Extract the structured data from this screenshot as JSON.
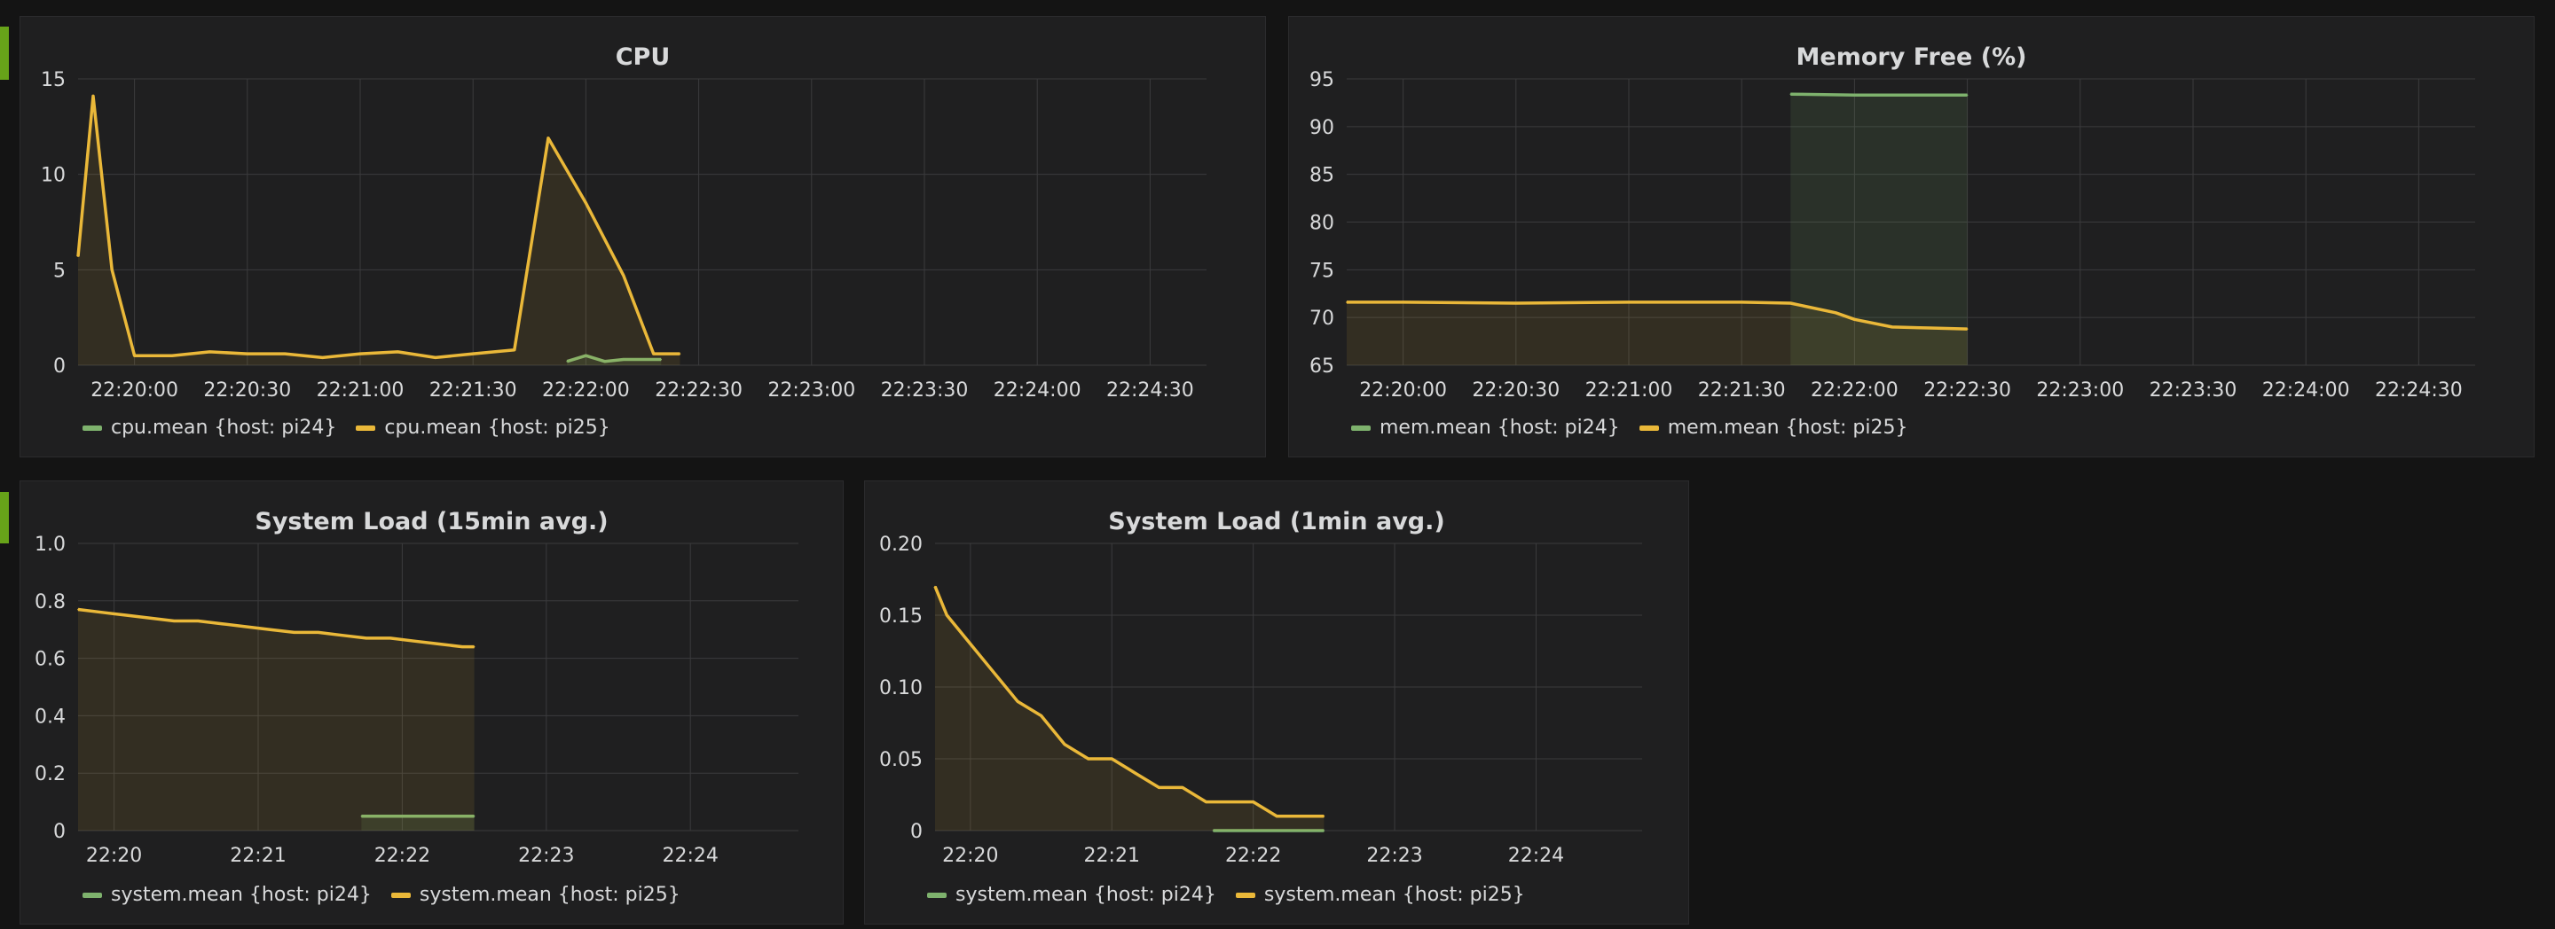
{
  "panels": [
    {
      "id": "cpu",
      "title": "CPU",
      "legend": [
        "cpu.mean {host: pi24}",
        "cpu.mean {host: pi25}"
      ]
    },
    {
      "id": "mem",
      "title": "Memory Free (%)",
      "legend": [
        "mem.mean {host: pi24}",
        "mem.mean {host: pi25}"
      ]
    },
    {
      "id": "load15",
      "title": "System Load (15min avg.)",
      "legend": [
        "system.mean {host: pi24}",
        "system.mean {host: pi25}"
      ]
    },
    {
      "id": "load1",
      "title": "System Load (1min avg.)",
      "legend": [
        "system.mean {host: pi24}",
        "system.mean {host: pi25}"
      ]
    }
  ],
  "colors": {
    "pi24": "#7eb26d",
    "pi25": "#eab839",
    "grid": "#3b3b3d",
    "text": "#d8d9da",
    "row_marker": "#67a319"
  },
  "chart_data": [
    {
      "type": "line",
      "title": "CPU",
      "xlabel": "",
      "ylabel": "",
      "xlim": [
        "22:19:45",
        "22:24:45"
      ],
      "ylim": [
        0,
        15
      ],
      "y_ticks": [
        "0",
        "5",
        "10",
        "15"
      ],
      "x_ticks": [
        "22:20:00",
        "22:20:30",
        "22:21:00",
        "22:21:30",
        "22:22:00",
        "22:22:30",
        "22:23:00",
        "22:23:30",
        "22:24:00",
        "22:24:30"
      ],
      "grid": true,
      "legend_position": "bottom-left",
      "series": [
        {
          "name": "cpu.mean {host: pi24}",
          "x": [
            "22:21:55",
            "22:22:00",
            "22:22:05",
            "22:22:10",
            "22:22:15",
            "22:22:20"
          ],
          "y": [
            0.2,
            0.5,
            0.2,
            0.3,
            0.3,
            0.3
          ]
        },
        {
          "name": "cpu.mean {host: pi25}",
          "x": [
            "22:19:45",
            "22:19:49",
            "22:19:54",
            "22:20:00",
            "22:20:05",
            "22:20:10",
            "22:20:20",
            "22:20:30",
            "22:20:40",
            "22:20:50",
            "22:21:00",
            "22:21:10",
            "22:21:20",
            "22:21:30",
            "22:21:41",
            "22:21:50",
            "22:22:00",
            "22:22:10",
            "22:22:18",
            "22:22:25"
          ],
          "y": [
            5.7,
            14.1,
            5.0,
            0.5,
            0.5,
            0.5,
            0.7,
            0.6,
            0.6,
            0.4,
            0.6,
            0.7,
            0.4,
            0.6,
            0.8,
            11.9,
            8.5,
            4.7,
            0.6,
            0.6
          ]
        }
      ]
    },
    {
      "type": "line",
      "title": "Memory Free (%)",
      "xlabel": "",
      "ylabel": "",
      "xlim": [
        "22:19:45",
        "22:24:45"
      ],
      "ylim": [
        65,
        95
      ],
      "y_ticks": [
        "65",
        "70",
        "75",
        "80",
        "85",
        "90",
        "95"
      ],
      "x_ticks": [
        "22:20:00",
        "22:20:30",
        "22:21:00",
        "22:21:30",
        "22:22:00",
        "22:22:30",
        "22:23:00",
        "22:23:30",
        "22:24:00",
        "22:24:30"
      ],
      "grid": true,
      "legend_position": "bottom-left",
      "series": [
        {
          "name": "mem.mean {host: pi24}",
          "x": [
            "22:21:43",
            "22:22:00",
            "22:22:15",
            "22:22:30"
          ],
          "y": [
            93.4,
            93.3,
            93.3,
            93.3
          ]
        },
        {
          "name": "mem.mean {host: pi25}",
          "x": [
            "22:19:45",
            "22:20:00",
            "22:20:30",
            "22:21:00",
            "22:21:30",
            "22:21:43",
            "22:21:55",
            "22:22:00",
            "22:22:10",
            "22:22:20",
            "22:22:30"
          ],
          "y": [
            71.6,
            71.6,
            71.5,
            71.6,
            71.6,
            71.5,
            70.5,
            69.8,
            69.0,
            68.9,
            68.8
          ]
        }
      ]
    },
    {
      "type": "line",
      "title": "System Load (15min avg.)",
      "xlabel": "",
      "ylabel": "",
      "xlim": [
        "22:19:45",
        "22:24:45"
      ],
      "ylim": [
        0,
        1.0
      ],
      "y_ticks": [
        "0",
        "0.2",
        "0.4",
        "0.6",
        "0.8",
        "1.0"
      ],
      "x_ticks": [
        "22:20",
        "22:21",
        "22:22",
        "22:23",
        "22:24"
      ],
      "grid": true,
      "legend_position": "bottom-left",
      "series": [
        {
          "name": "system.mean {host: pi24}",
          "x": [
            "22:21:43",
            "22:22:00",
            "22:22:15",
            "22:22:30"
          ],
          "y": [
            0.05,
            0.05,
            0.05,
            0.05
          ]
        },
        {
          "name": "system.mean {host: pi25}",
          "x": [
            "22:19:45",
            "22:19:55",
            "22:20:05",
            "22:20:15",
            "22:20:25",
            "22:20:35",
            "22:20:45",
            "22:20:55",
            "22:21:05",
            "22:21:15",
            "22:21:25",
            "22:21:35",
            "22:21:45",
            "22:21:55",
            "22:22:05",
            "22:22:15",
            "22:22:25",
            "22:22:30"
          ],
          "y": [
            0.77,
            0.76,
            0.75,
            0.74,
            0.73,
            0.73,
            0.72,
            0.71,
            0.7,
            0.69,
            0.69,
            0.68,
            0.67,
            0.67,
            0.66,
            0.65,
            0.64,
            0.64
          ]
        }
      ]
    },
    {
      "type": "line",
      "title": "System Load (1min avg.)",
      "xlabel": "",
      "ylabel": "",
      "xlim": [
        "22:19:45",
        "22:24:45"
      ],
      "ylim": [
        0,
        0.2
      ],
      "y_ticks": [
        "0",
        "0.05",
        "0.10",
        "0.15",
        "0.20"
      ],
      "x_ticks": [
        "22:20",
        "22:21",
        "22:22",
        "22:23",
        "22:24"
      ],
      "grid": true,
      "legend_position": "bottom-left",
      "series": [
        {
          "name": "system.mean {host: pi24}",
          "x": [
            "22:21:43",
            "22:22:00",
            "22:22:15",
            "22:22:30"
          ],
          "y": [
            0.0,
            0.0,
            0.0,
            0.0
          ]
        },
        {
          "name": "system.mean {host: pi25}",
          "x": [
            "22:19:45",
            "22:19:50",
            "22:20:00",
            "22:20:10",
            "22:20:20",
            "22:20:30",
            "22:20:40",
            "22:20:50",
            "22:21:00",
            "22:21:10",
            "22:21:20",
            "22:21:30",
            "22:21:40",
            "22:21:50",
            "22:22:00",
            "22:22:10",
            "22:22:20",
            "22:22:30"
          ],
          "y": [
            0.17,
            0.15,
            0.13,
            0.11,
            0.09,
            0.08,
            0.06,
            0.05,
            0.05,
            0.04,
            0.03,
            0.03,
            0.02,
            0.02,
            0.02,
            0.01,
            0.01,
            0.01
          ]
        }
      ]
    }
  ]
}
